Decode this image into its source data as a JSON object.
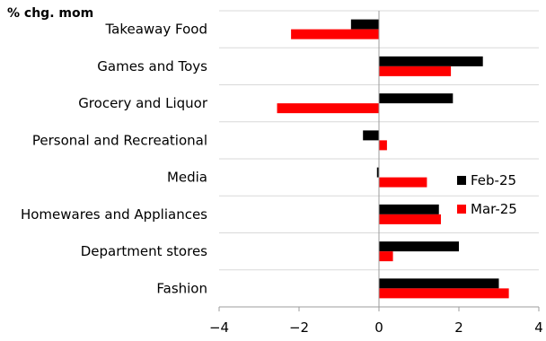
{
  "chart_data": {
    "type": "bar",
    "orientation": "horizontal",
    "ylabel": "% chg. mom",
    "xlabel": "",
    "xlim": [
      -4,
      4
    ],
    "xticks": [
      -4,
      -2,
      0,
      2,
      4
    ],
    "grid": "horizontal separators between categories",
    "legend_position": "right-center",
    "categories": [
      "Takeaway Food",
      "Games and Toys",
      "Grocery and Liquor",
      "Personal and Recreational",
      "Media",
      "Homewares and Appliances",
      "Department stores",
      "Fashion"
    ],
    "series": [
      {
        "name": "Feb-25",
        "color": "#000000",
        "values": [
          -0.7,
          2.6,
          1.85,
          -0.4,
          -0.05,
          1.5,
          2.0,
          3.0
        ]
      },
      {
        "name": "Mar-25",
        "color": "#ff0000",
        "values": [
          -2.2,
          1.8,
          -2.55,
          0.2,
          1.2,
          1.55,
          0.35,
          3.25
        ]
      }
    ]
  }
}
